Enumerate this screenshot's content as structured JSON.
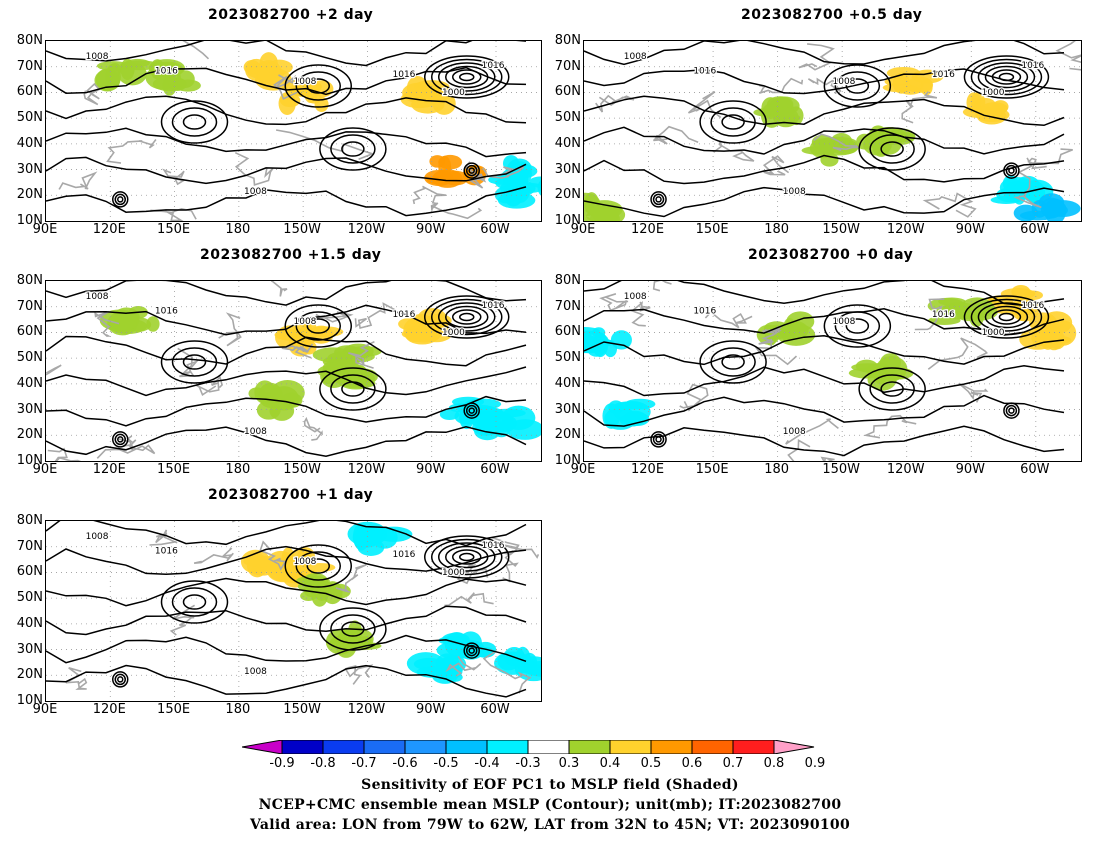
{
  "panels": [
    {
      "title": "2023082700 +2 day"
    },
    {
      "title": "2023082700 +0.5 day"
    },
    {
      "title": "2023082700 +1.5 day"
    },
    {
      "title": "2023082700 +0 day"
    },
    {
      "title": "2023082700 +1 day"
    }
  ],
  "axes": {
    "lat_labels": [
      "80N",
      "70N",
      "60N",
      "50N",
      "40N",
      "30N",
      "20N",
      "10N"
    ],
    "lon_labels": [
      "90E",
      "120E",
      "150E",
      "180",
      "150W",
      "120W",
      "90W",
      "60W"
    ]
  },
  "contour_labels": [
    "1008",
    "1016",
    "1000"
  ],
  "colorbar": {
    "labels": [
      "-0.9",
      "-0.8",
      "-0.7",
      "-0.6",
      "-0.5",
      "-0.4",
      "-0.3",
      "0.3",
      "0.4",
      "0.5",
      "0.6",
      "0.7",
      "0.8",
      "0.9"
    ],
    "colors": [
      "#c800c8",
      "#0000c8",
      "#0a3cf0",
      "#1a6cf5",
      "#1e96ff",
      "#00c0ff",
      "#00f0ff",
      "#ffffff",
      "#a0d22d",
      "#ffd22d",
      "#ff9900",
      "#ff6400",
      "#ff1e1e",
      "#ffa0c8"
    ]
  },
  "caption": {
    "line1": "Sensitivity of EOF PC1 to MSLP field (Shaded)",
    "line2": "NCEP+CMC ensemble mean MSLP (Contour); unit(mb); IT:2023082700",
    "line3": "Valid area: LON from 79W to 62W, LAT from 32N to 45N; VT: 2023090100"
  }
}
